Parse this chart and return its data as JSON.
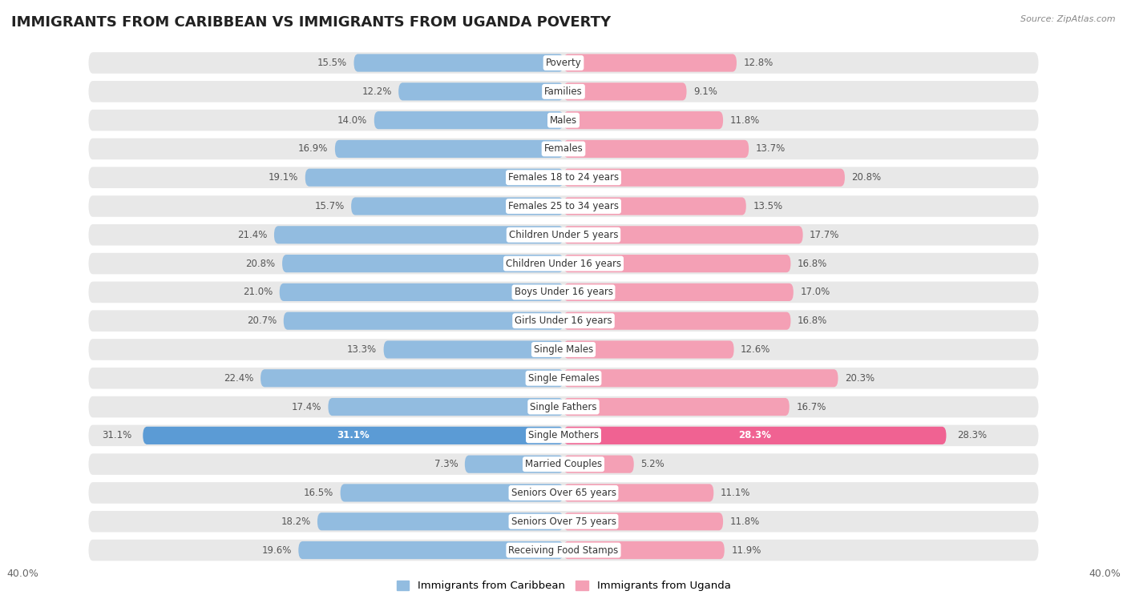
{
  "title": "IMMIGRANTS FROM CARIBBEAN VS IMMIGRANTS FROM UGANDA POVERTY",
  "source": "Source: ZipAtlas.com",
  "categories": [
    "Poverty",
    "Families",
    "Males",
    "Females",
    "Females 18 to 24 years",
    "Females 25 to 34 years",
    "Children Under 5 years",
    "Children Under 16 years",
    "Boys Under 16 years",
    "Girls Under 16 years",
    "Single Males",
    "Single Females",
    "Single Fathers",
    "Single Mothers",
    "Married Couples",
    "Seniors Over 65 years",
    "Seniors Over 75 years",
    "Receiving Food Stamps"
  ],
  "caribbean_values": [
    15.5,
    12.2,
    14.0,
    16.9,
    19.1,
    15.7,
    21.4,
    20.8,
    21.0,
    20.7,
    13.3,
    22.4,
    17.4,
    31.1,
    7.3,
    16.5,
    18.2,
    19.6
  ],
  "uganda_values": [
    12.8,
    9.1,
    11.8,
    13.7,
    20.8,
    13.5,
    17.7,
    16.8,
    17.0,
    16.8,
    12.6,
    20.3,
    16.7,
    28.3,
    5.2,
    11.1,
    11.8,
    11.9
  ],
  "caribbean_color": "#92bce0",
  "uganda_color": "#f4a0b5",
  "single_mothers_caribbean_color": "#5b9bd5",
  "single_mothers_uganda_color": "#f06292",
  "row_bg_color": "#e8e8e8",
  "xlim": 40.0,
  "legend_label_caribbean": "Immigrants from Caribbean",
  "legend_label_uganda": "Immigrants from Uganda",
  "title_fontsize": 13,
  "label_fontsize": 8.5,
  "value_fontsize": 8.5,
  "source_fontsize": 8
}
